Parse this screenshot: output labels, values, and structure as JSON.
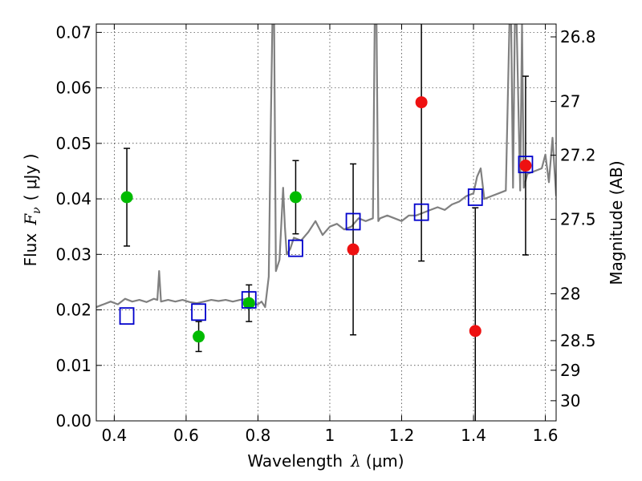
{
  "chart_data": {
    "type": "scatter",
    "title": "",
    "xlabel": "Wavelength",
    "xlabel_symbol": "λ",
    "xlabel_unit": "(μm)",
    "ylabel": "Flux",
    "ylabel_symbol": "F",
    "ylabel_subscript": "ν",
    "ylabel_unit": "( μJy )",
    "y2label": "Magnitude (AB)",
    "xlim": [
      0.35,
      1.63
    ],
    "ylim": [
      0.0,
      0.0715
    ],
    "grid": true,
    "x_ticks": [
      0.4,
      0.6,
      0.8,
      1.0,
      1.2,
      1.4,
      1.6
    ],
    "x_tick_labels": [
      "0.4",
      "0.6",
      "0.8",
      "1",
      "1.2",
      "1.4",
      "1.6"
    ],
    "y_ticks": [
      0.0,
      0.01,
      0.02,
      0.03,
      0.04,
      0.05,
      0.06,
      0.07
    ],
    "y_tick_labels": [
      "0.00",
      "0.01",
      "0.02",
      "0.03",
      "0.04",
      "0.05",
      "0.06",
      "0.07"
    ],
    "y2_ticks": [
      26.8,
      27.0,
      27.2,
      27.5,
      28.0,
      28.5,
      29.0,
      30.0
    ],
    "y2_tick_labels": [
      "26.8",
      "27",
      "27.2",
      "27.5",
      "28",
      "28.5",
      "29",
      "30"
    ],
    "series": [
      {
        "marker": "circle",
        "color": "#00bb00",
        "points": [
          {
            "x": 0.435,
            "y": 0.0403,
            "yerr": 0.0088
          },
          {
            "x": 0.635,
            "y": 0.0152,
            "yerr": 0.0027
          },
          {
            "x": 0.775,
            "y": 0.0212,
            "yerr": 0.0033
          },
          {
            "x": 0.905,
            "y": 0.0403,
            "yerr": 0.0066
          }
        ]
      },
      {
        "marker": "circle",
        "color": "#ee1111",
        "points": [
          {
            "x": 1.065,
            "y": 0.0309,
            "yerr": 0.0154
          },
          {
            "x": 1.255,
            "y": 0.0574,
            "yerr": 0.0286
          },
          {
            "x": 1.405,
            "y": 0.0162,
            "yerr": 0.0222
          },
          {
            "x": 1.545,
            "y": 0.046,
            "yerr": 0.0161
          }
        ]
      },
      {
        "marker": "square-open",
        "color": "#0000cc",
        "points": [
          {
            "x": 0.435,
            "y": 0.0189
          },
          {
            "x": 0.635,
            "y": 0.0196
          },
          {
            "x": 0.775,
            "y": 0.0218
          },
          {
            "x": 0.905,
            "y": 0.0311
          },
          {
            "x": 1.065,
            "y": 0.0359
          },
          {
            "x": 1.255,
            "y": 0.0376
          },
          {
            "x": 1.405,
            "y": 0.0403
          },
          {
            "x": 1.545,
            "y": 0.0462
          }
        ]
      }
    ],
    "spectrum": {
      "color": "#808080",
      "x": [
        0.35,
        0.37,
        0.39,
        0.41,
        0.43,
        0.45,
        0.47,
        0.49,
        0.51,
        0.52,
        0.525,
        0.53,
        0.55,
        0.57,
        0.59,
        0.61,
        0.63,
        0.65,
        0.67,
        0.69,
        0.71,
        0.73,
        0.75,
        0.77,
        0.79,
        0.8,
        0.81,
        0.82,
        0.83,
        0.835,
        0.84,
        0.845,
        0.85,
        0.86,
        0.87,
        0.875,
        0.88,
        0.89,
        0.9,
        0.92,
        0.94,
        0.96,
        0.98,
        1.0,
        1.02,
        1.04,
        1.06,
        1.08,
        1.1,
        1.12,
        1.125,
        1.13,
        1.135,
        1.14,
        1.16,
        1.18,
        1.2,
        1.22,
        1.24,
        1.26,
        1.28,
        1.3,
        1.32,
        1.34,
        1.36,
        1.38,
        1.4,
        1.41,
        1.42,
        1.43,
        1.45,
        1.47,
        1.49,
        1.5,
        1.505,
        1.51,
        1.515,
        1.52,
        1.53,
        1.535,
        1.54,
        1.55,
        1.57,
        1.59,
        1.6,
        1.61,
        1.62,
        1.63
      ],
      "y": [
        0.0205,
        0.021,
        0.0215,
        0.021,
        0.022,
        0.0215,
        0.0218,
        0.0214,
        0.022,
        0.0218,
        0.027,
        0.0215,
        0.0218,
        0.0215,
        0.0218,
        0.0214,
        0.0212,
        0.0215,
        0.0218,
        0.0216,
        0.0218,
        0.0215,
        0.0218,
        0.022,
        0.021,
        0.021,
        0.0215,
        0.0205,
        0.026,
        0.05,
        0.0715,
        0.0715,
        0.027,
        0.029,
        0.042,
        0.035,
        0.03,
        0.031,
        0.033,
        0.0325,
        0.034,
        0.036,
        0.0335,
        0.035,
        0.0355,
        0.0345,
        0.035,
        0.0365,
        0.036,
        0.0365,
        0.0715,
        0.0715,
        0.036,
        0.0365,
        0.037,
        0.0365,
        0.036,
        0.037,
        0.037,
        0.0375,
        0.038,
        0.0385,
        0.038,
        0.039,
        0.0395,
        0.0405,
        0.041,
        0.044,
        0.0455,
        0.04,
        0.0405,
        0.041,
        0.0415,
        0.0715,
        0.0715,
        0.042,
        0.0715,
        0.0715,
        0.0415,
        0.0715,
        0.042,
        0.0445,
        0.045,
        0.0455,
        0.048,
        0.043,
        0.051,
        0.0405
      ]
    }
  }
}
